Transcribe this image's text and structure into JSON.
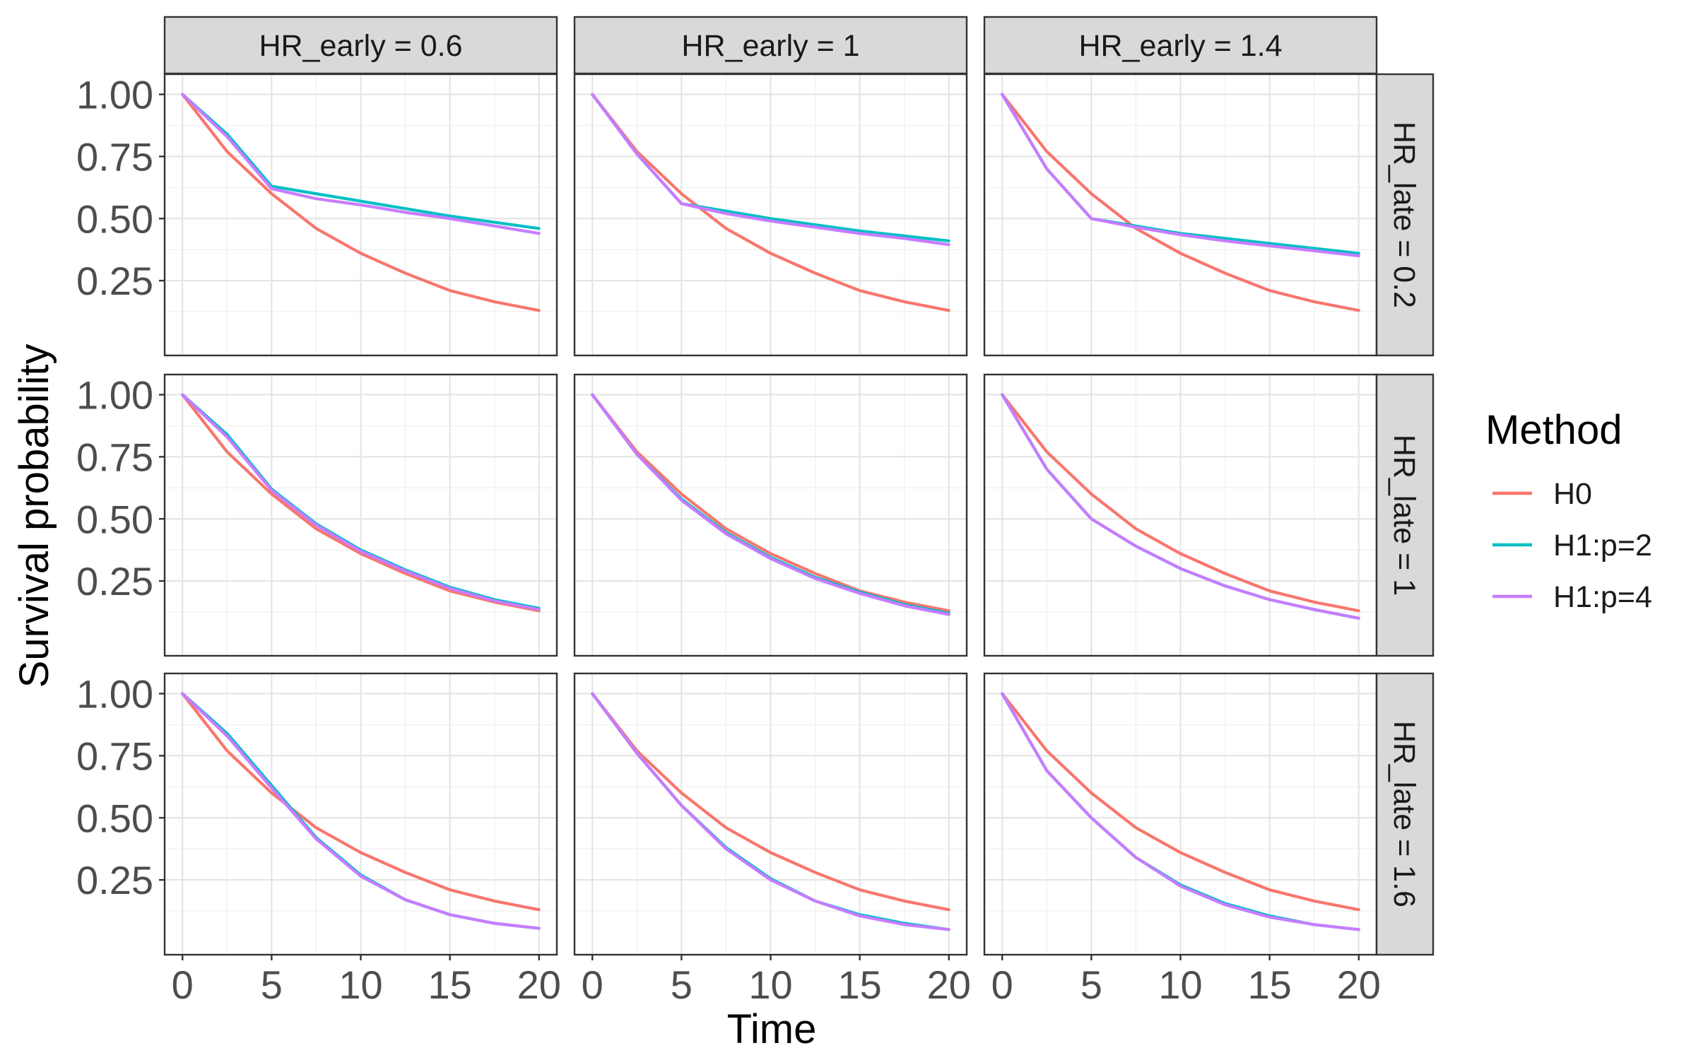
{
  "chart_data": {
    "type": "line",
    "layout": "facet_grid",
    "xlabel": "Time",
    "ylabel": "Survival probability",
    "xlim": [
      -1,
      21
    ],
    "ylim": [
      0,
      1.03
    ],
    "x_ticks": [
      "0",
      "5",
      "10",
      "15",
      "20"
    ],
    "x_tick_values": [
      0,
      5,
      10,
      15,
      20
    ],
    "y_ticks": [
      "0.25",
      "0.50",
      "0.75",
      "1.00"
    ],
    "y_tick_values": [
      0.25,
      0.5,
      0.75,
      1.0
    ],
    "grid": true,
    "legend": {
      "title": "Method",
      "position": "right",
      "entries": [
        {
          "label": "H0",
          "color": "#F8766D"
        },
        {
          "label": "H1:p=2",
          "color": "#00BFC4"
        },
        {
          "label": "H1:p=4",
          "color": "#C77CFF"
        }
      ]
    },
    "col_strips": [
      "HR_early = 0.6",
      "HR_early = 1",
      "HR_early = 1.4"
    ],
    "row_strips": [
      "HR_late = 0.2",
      "HR_late = 1",
      "HR_late = 1.6"
    ],
    "x": [
      0,
      2.5,
      5,
      7.5,
      10,
      12.5,
      15,
      17.5,
      20
    ],
    "panels": [
      {
        "row": 0,
        "col": 0,
        "series": [
          {
            "name": "H0",
            "values": [
              1.0,
              0.77,
              0.6,
              0.46,
              0.36,
              0.28,
              0.21,
              0.165,
              0.13
            ]
          },
          {
            "name": "H1:p=2",
            "values": [
              1.0,
              0.84,
              0.63,
              0.6,
              0.57,
              0.54,
              0.51,
              0.485,
              0.46
            ]
          },
          {
            "name": "H1:p=4",
            "values": [
              1.0,
              0.83,
              0.62,
              0.58,
              0.555,
              0.525,
              0.5,
              0.47,
              0.44
            ]
          }
        ]
      },
      {
        "row": 0,
        "col": 1,
        "series": [
          {
            "name": "H0",
            "values": [
              1.0,
              0.77,
              0.6,
              0.46,
              0.36,
              0.28,
              0.21,
              0.165,
              0.13
            ]
          },
          {
            "name": "H1:p=2",
            "values": [
              1.0,
              0.76,
              0.56,
              0.53,
              0.5,
              0.475,
              0.45,
              0.43,
              0.41
            ]
          },
          {
            "name": "H1:p=4",
            "values": [
              1.0,
              0.76,
              0.56,
              0.52,
              0.49,
              0.465,
              0.44,
              0.42,
              0.395
            ]
          }
        ]
      },
      {
        "row": 0,
        "col": 2,
        "series": [
          {
            "name": "H0",
            "values": [
              1.0,
              0.77,
              0.6,
              0.46,
              0.36,
              0.28,
              0.21,
              0.165,
              0.13
            ]
          },
          {
            "name": "H1:p=2",
            "values": [
              1.0,
              0.7,
              0.5,
              0.47,
              0.44,
              0.42,
              0.4,
              0.38,
              0.36
            ]
          },
          {
            "name": "H1:p=4",
            "values": [
              1.0,
              0.7,
              0.5,
              0.465,
              0.435,
              0.41,
              0.39,
              0.37,
              0.35
            ]
          }
        ]
      },
      {
        "row": 1,
        "col": 0,
        "series": [
          {
            "name": "H0",
            "values": [
              1.0,
              0.77,
              0.6,
              0.46,
              0.36,
              0.28,
              0.21,
              0.165,
              0.13
            ]
          },
          {
            "name": "H1:p=2",
            "values": [
              1.0,
              0.84,
              0.62,
              0.48,
              0.375,
              0.295,
              0.225,
              0.175,
              0.14
            ]
          },
          {
            "name": "H1:p=4",
            "values": [
              1.0,
              0.83,
              0.615,
              0.475,
              0.37,
              0.29,
              0.22,
              0.17,
              0.135
            ]
          }
        ]
      },
      {
        "row": 1,
        "col": 1,
        "series": [
          {
            "name": "H0",
            "values": [
              1.0,
              0.77,
              0.6,
              0.46,
              0.36,
              0.28,
              0.21,
              0.165,
              0.13
            ]
          },
          {
            "name": "H1:p=2",
            "values": [
              1.0,
              0.76,
              0.58,
              0.445,
              0.345,
              0.265,
              0.205,
              0.155,
              0.12
            ]
          },
          {
            "name": "H1:p=4",
            "values": [
              1.0,
              0.76,
              0.575,
              0.44,
              0.34,
              0.26,
              0.2,
              0.15,
              0.115
            ]
          }
        ]
      },
      {
        "row": 1,
        "col": 2,
        "series": [
          {
            "name": "H0",
            "values": [
              1.0,
              0.77,
              0.6,
              0.46,
              0.36,
              0.28,
              0.21,
              0.165,
              0.13
            ]
          },
          {
            "name": "H1:p=2",
            "values": [
              1.0,
              0.7,
              0.5,
              0.39,
              0.3,
              0.23,
              0.175,
              0.135,
              0.1
            ]
          },
          {
            "name": "H1:p=4",
            "values": [
              1.0,
              0.7,
              0.5,
              0.39,
              0.3,
              0.23,
              0.175,
              0.135,
              0.1
            ]
          }
        ]
      },
      {
        "row": 2,
        "col": 0,
        "series": [
          {
            "name": "H0",
            "values": [
              1.0,
              0.77,
              0.6,
              0.46,
              0.36,
              0.28,
              0.21,
              0.165,
              0.13
            ]
          },
          {
            "name": "H1:p=2",
            "values": [
              1.0,
              0.84,
              0.63,
              0.42,
              0.27,
              0.17,
              0.11,
              0.075,
              0.055
            ]
          },
          {
            "name": "H1:p=4",
            "values": [
              1.0,
              0.83,
              0.62,
              0.415,
              0.265,
              0.17,
              0.11,
              0.075,
              0.055
            ]
          }
        ]
      },
      {
        "row": 2,
        "col": 1,
        "series": [
          {
            "name": "H0",
            "values": [
              1.0,
              0.77,
              0.6,
              0.46,
              0.36,
              0.28,
              0.21,
              0.165,
              0.13
            ]
          },
          {
            "name": "H1:p=2",
            "values": [
              1.0,
              0.76,
              0.55,
              0.38,
              0.255,
              0.165,
              0.11,
              0.075,
              0.05
            ]
          },
          {
            "name": "H1:p=4",
            "values": [
              1.0,
              0.76,
              0.55,
              0.375,
              0.25,
              0.165,
              0.105,
              0.07,
              0.05
            ]
          }
        ]
      },
      {
        "row": 2,
        "col": 2,
        "series": [
          {
            "name": "H0",
            "values": [
              1.0,
              0.77,
              0.6,
              0.46,
              0.36,
              0.28,
              0.21,
              0.165,
              0.13
            ]
          },
          {
            "name": "H1:p=2",
            "values": [
              1.0,
              0.69,
              0.5,
              0.34,
              0.23,
              0.155,
              0.105,
              0.07,
              0.05
            ]
          },
          {
            "name": "H1:p=4",
            "values": [
              1.0,
              0.69,
              0.5,
              0.34,
              0.225,
              0.15,
              0.1,
              0.07,
              0.05
            ]
          }
        ]
      }
    ]
  }
}
